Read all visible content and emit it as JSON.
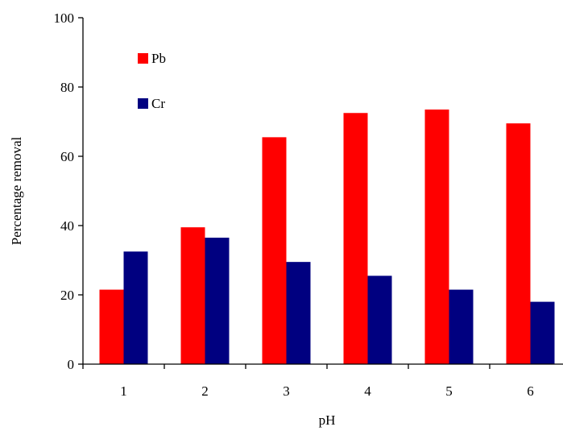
{
  "chart_data": {
    "type": "bar",
    "title": "",
    "xlabel": "pH",
    "ylabel": "Percentage removal",
    "categories": [
      "1",
      "2",
      "3",
      "4",
      "5",
      "6"
    ],
    "ylim": [
      0,
      100
    ],
    "yticks": [
      0,
      20,
      40,
      60,
      80,
      100
    ],
    "grid": false,
    "legend_position": "top-left",
    "series": [
      {
        "name": "Pb",
        "color": "#ff0000",
        "values": [
          21.5,
          39.5,
          65.5,
          72.5,
          73.5,
          69.5
        ]
      },
      {
        "name": "Cr",
        "color": "#000080",
        "values": [
          32.5,
          36.5,
          29.5,
          25.5,
          21.5,
          18.0
        ]
      }
    ]
  }
}
